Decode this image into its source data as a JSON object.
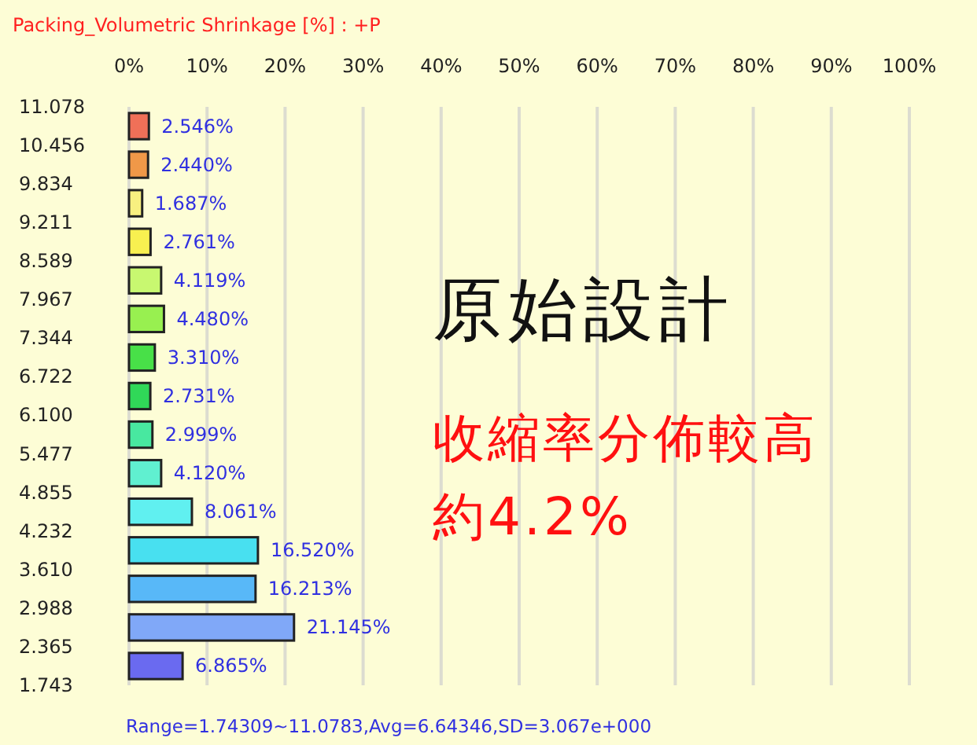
{
  "chart_data": {
    "type": "histogram",
    "orientation": "horizontal",
    "title": "Packing_Volumetric Shrinkage [%] : +P",
    "bins": [
      1.743,
      2.365,
      2.988,
      3.61,
      4.232,
      4.855,
      5.477,
      6.1,
      6.722,
      7.344,
      7.967,
      8.589,
      9.211,
      9.834,
      10.456,
      11.078
    ],
    "values": [
      6.865,
      21.145,
      16.213,
      16.52,
      8.061,
      4.12,
      2.999,
      2.731,
      3.31,
      4.48,
      4.119,
      2.761,
      1.687,
      2.44,
      2.546
    ],
    "value_labels": [
      "6.865%",
      "21.145%",
      "16.213%",
      "16.520%",
      "8.061%",
      "4.120%",
      "2.999%",
      "2.731%",
      "3.310%",
      "4.480%",
      "4.119%",
      "2.761%",
      "1.687%",
      "2.440%",
      "2.546%"
    ],
    "colors": [
      "#6a6af0",
      "#80a8f8",
      "#58b8f8",
      "#48e0f0",
      "#60f0f0",
      "#60f0d0",
      "#48e8a0",
      "#30d858",
      "#48e048",
      "#98f050",
      "#c8f870",
      "#f8f050",
      "#f8f080",
      "#f09848",
      "#f07058"
    ],
    "ylim": [
      1.743,
      11.078
    ],
    "yticks": [
      1.743,
      2.365,
      2.988,
      {
        "value": 3.61,
        "label": "3.610"
      },
      4.232,
      4.855,
      5.477,
      {
        "value": 6.1,
        "label": "6.100"
      },
      6.722,
      7.344,
      7.967,
      8.589,
      9.211,
      9.834,
      10.456,
      11.078
    ],
    "xlim": [
      0,
      100
    ],
    "xticks": [
      {
        "value": 0,
        "label": "0%"
      },
      {
        "value": 10,
        "label": "10%"
      },
      {
        "value": 20,
        "label": "20%"
      },
      {
        "value": 30,
        "label": "30%"
      },
      {
        "value": 40,
        "label": "40%"
      },
      {
        "value": 50,
        "label": "50%"
      },
      {
        "value": 60,
        "label": "60%"
      },
      {
        "value": 70,
        "label": "70%"
      },
      {
        "value": 80,
        "label": "80%"
      },
      {
        "value": 90,
        "label": "90%"
      },
      {
        "value": 100,
        "label": "100%"
      }
    ],
    "grid": "x",
    "annotations": [
      "原始設計",
      "收縮率分佈較高",
      "約4.2%",
      "Range=1.74309~11.0783,Avg=6.64346,SD=3.067e+000"
    ]
  }
}
